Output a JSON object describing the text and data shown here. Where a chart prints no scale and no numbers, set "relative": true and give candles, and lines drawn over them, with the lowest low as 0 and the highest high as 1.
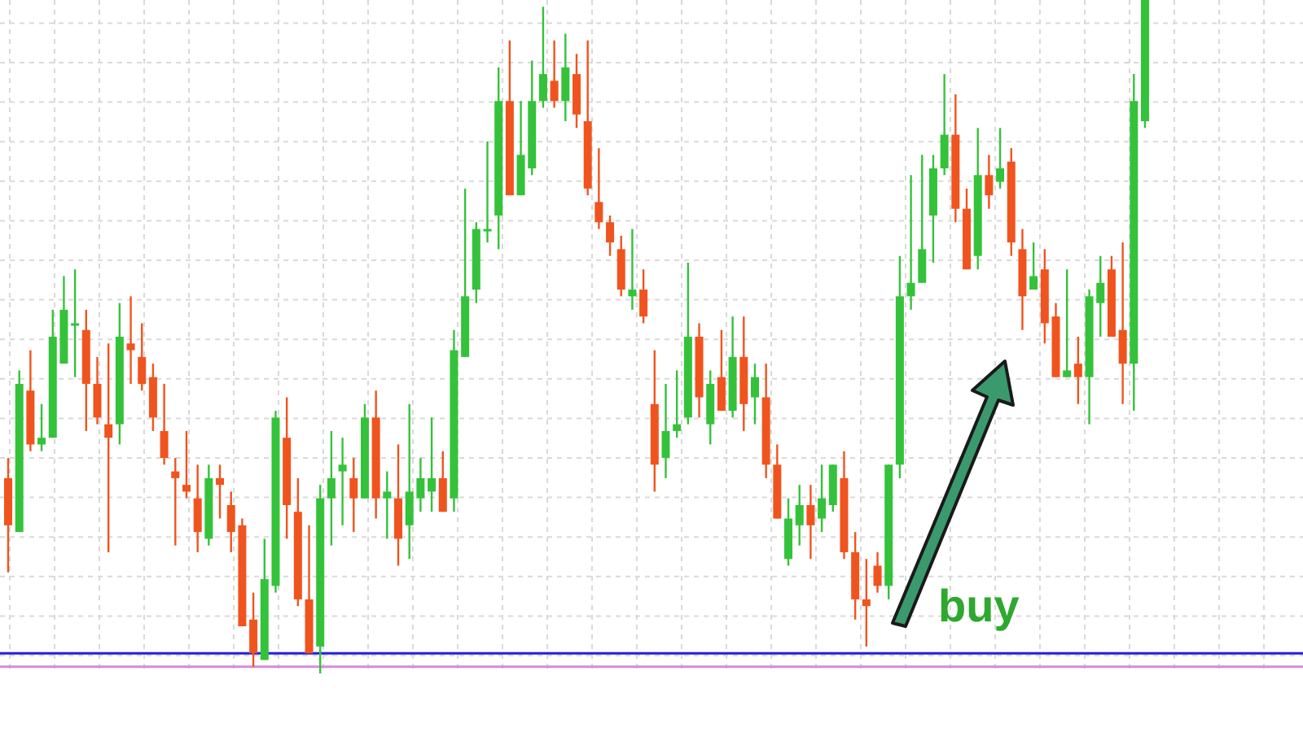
{
  "chart_data": {
    "type": "candlestick",
    "relative": true,
    "grid": true,
    "categories": [
      null,
      null,
      null,
      null,
      null,
      null,
      null,
      null,
      null,
      null,
      null,
      null,
      null,
      null,
      null,
      null,
      null,
      null,
      null,
      null,
      null,
      null,
      null,
      null,
      null,
      null,
      null,
      null,
      null,
      null,
      null,
      null,
      null,
      null,
      null,
      null,
      null,
      null,
      null,
      null,
      null,
      null,
      null,
      null,
      null,
      null,
      null,
      null,
      null,
      null,
      null,
      null,
      null,
      null,
      null,
      null,
      null,
      null,
      null,
      null,
      null,
      null,
      null,
      null,
      null,
      null,
      null,
      null,
      null,
      null,
      null,
      null,
      null,
      null,
      null,
      null,
      null,
      null,
      null,
      null,
      null,
      null,
      null,
      null,
      null,
      null,
      null,
      null,
      null,
      null,
      null,
      null,
      null,
      null,
      null,
      null,
      null,
      null,
      null,
      null,
      null,
      null,
      null
    ],
    "ohlc": [
      [
        0.29,
        0.32,
        0.15,
        0.22
      ],
      [
        0.21,
        0.45,
        0.21,
        0.43
      ],
      [
        0.42,
        0.48,
        0.33,
        0.34
      ],
      [
        0.34,
        0.4,
        0.33,
        0.35
      ],
      [
        0.35,
        0.54,
        0.35,
        0.5
      ],
      [
        0.46,
        0.59,
        0.46,
        0.54
      ],
      [
        0.52,
        0.6,
        0.44,
        0.52
      ],
      [
        0.51,
        0.54,
        0.36,
        0.43
      ],
      [
        0.43,
        0.47,
        0.37,
        0.38
      ],
      [
        0.37,
        0.49,
        0.18,
        0.35
      ],
      [
        0.37,
        0.55,
        0.34,
        0.5
      ],
      [
        0.49,
        0.56,
        0.43,
        0.48
      ],
      [
        0.47,
        0.52,
        0.42,
        0.43
      ],
      [
        0.44,
        0.46,
        0.36,
        0.38
      ],
      [
        0.36,
        0.43,
        0.31,
        0.32
      ],
      [
        0.3,
        0.32,
        0.19,
        0.29
      ],
      [
        0.28,
        0.36,
        0.26,
        0.27
      ],
      [
        0.26,
        0.31,
        0.18,
        0.21
      ],
      [
        0.2,
        0.31,
        0.19,
        0.29
      ],
      [
        0.29,
        0.31,
        0.23,
        0.28
      ],
      [
        0.25,
        0.27,
        0.18,
        0.21
      ],
      [
        0.22,
        0.23,
        0.07,
        0.07
      ],
      [
        0.08,
        0.12,
        0.01,
        0.03
      ],
      [
        0.02,
        0.2,
        0.02,
        0.14
      ],
      [
        0.13,
        0.39,
        0.12,
        0.38
      ],
      [
        0.35,
        0.41,
        0.2,
        0.25
      ],
      [
        0.24,
        0.29,
        0.1,
        0.11
      ],
      [
        0.11,
        0.22,
        0.03,
        0.03
      ],
      [
        0.04,
        0.28,
        0,
        0.26
      ],
      [
        0.26,
        0.36,
        0.19,
        0.29
      ],
      [
        0.3,
        0.35,
        0.22,
        0.31
      ],
      [
        0.29,
        0.32,
        0.21,
        0.26
      ],
      [
        0.26,
        0.4,
        0.26,
        0.38
      ],
      [
        0.38,
        0.42,
        0.23,
        0.26
      ],
      [
        0.26,
        0.3,
        0.2,
        0.27
      ],
      [
        0.26,
        0.34,
        0.16,
        0.2
      ],
      [
        0.22,
        0.4,
        0.17,
        0.27
      ],
      [
        0.26,
        0.32,
        0.24,
        0.29
      ],
      [
        0.27,
        0.38,
        0.24,
        0.29
      ],
      [
        0.29,
        0.33,
        0.24,
        0.24
      ],
      [
        0.26,
        0.51,
        0.24,
        0.48
      ],
      [
        0.47,
        0.72,
        0.47,
        0.56
      ],
      [
        0.57,
        0.67,
        0.55,
        0.66
      ],
      [
        0.66,
        0.79,
        0.64,
        0.66
      ],
      [
        0.68,
        0.9,
        0.63,
        0.85
      ],
      [
        0.85,
        0.94,
        0.71,
        0.71
      ],
      [
        0.71,
        0.85,
        0.71,
        0.77
      ],
      [
        0.75,
        0.91,
        0.74,
        0.85
      ],
      [
        0.85,
        0.99,
        0.84,
        0.89
      ],
      [
        0.88,
        0.94,
        0.84,
        0.85
      ],
      [
        0.85,
        0.95,
        0.82,
        0.9
      ],
      [
        0.89,
        0.92,
        0.81,
        0.83
      ],
      [
        0.82,
        0.94,
        0.71,
        0.72
      ],
      [
        0.7,
        0.78,
        0.66,
        0.67
      ],
      [
        0.67,
        0.68,
        0.62,
        0.64
      ],
      [
        0.63,
        0.65,
        0.56,
        0.57
      ],
      [
        0.56,
        0.66,
        0.54,
        0.57
      ],
      [
        0.57,
        0.6,
        0.52,
        0.53
      ],
      [
        0.4,
        0.48,
        0.27,
        0.31
      ],
      [
        0.32,
        0.43,
        0.29,
        0.36
      ],
      [
        0.36,
        0.45,
        0.35,
        0.37
      ],
      [
        0.38,
        0.61,
        0.37,
        0.5
      ],
      [
        0.5,
        0.52,
        0.38,
        0.41
      ],
      [
        0.37,
        0.45,
        0.34,
        0.43
      ],
      [
        0.44,
        0.51,
        0.39,
        0.39
      ],
      [
        0.39,
        0.53,
        0.38,
        0.47
      ],
      [
        0.47,
        0.53,
        0.36,
        0.4
      ],
      [
        0.41,
        0.46,
        0.37,
        0.44
      ],
      [
        0.41,
        0.46,
        0.29,
        0.31
      ],
      [
        0.31,
        0.34,
        0.23,
        0.23
      ],
      [
        0.17,
        0.26,
        0.16,
        0.23
      ],
      [
        0.22,
        0.28,
        0.19,
        0.25
      ],
      [
        0.25,
        0.28,
        0.17,
        0.22
      ],
      [
        0.23,
        0.31,
        0.21,
        0.26
      ],
      [
        0.25,
        0.31,
        0.24,
        0.31
      ],
      [
        0.29,
        0.33,
        0.17,
        0.18
      ],
      [
        0.18,
        0.21,
        0.08,
        0.11
      ],
      [
        0.11,
        0.17,
        0.04,
        0.1
      ],
      [
        0.16,
        0.18,
        0.12,
        0.13
      ],
      [
        0.13,
        0.31,
        0.11,
        0.31
      ],
      [
        0.31,
        0.62,
        0.29,
        0.56
      ],
      [
        0.56,
        0.74,
        0.54,
        0.58
      ],
      [
        0.58,
        0.77,
        0.58,
        0.63
      ],
      [
        0.68,
        0.77,
        0.61,
        0.75
      ],
      [
        0.75,
        0.89,
        0.74,
        0.8
      ],
      [
        0.8,
        0.86,
        0.67,
        0.69
      ],
      [
        0.69,
        0.72,
        0.6,
        0.6
      ],
      [
        0.62,
        0.81,
        0.6,
        0.74
      ],
      [
        0.74,
        0.77,
        0.69,
        0.71
      ],
      [
        0.73,
        0.81,
        0.72,
        0.75
      ],
      [
        0.76,
        0.78,
        0.62,
        0.64
      ],
      [
        0.63,
        0.66,
        0.51,
        0.56
      ],
      [
        0.57,
        0.64,
        0.57,
        0.59
      ],
      [
        0.6,
        0.63,
        0.49,
        0.52
      ],
      [
        0.53,
        0.55,
        0.44,
        0.44
      ],
      [
        0.44,
        0.6,
        0.44,
        0.45
      ],
      [
        0.46,
        0.5,
        0.4,
        0.44
      ],
      [
        0.44,
        0.57,
        0.37,
        0.56
      ],
      [
        0.55,
        0.62,
        0.5,
        0.58
      ],
      [
        0.6,
        0.62,
        0.5,
        0.5
      ],
      [
        0.51,
        0.64,
        0.4,
        0.46
      ],
      [
        0.46,
        0.89,
        0.39,
        0.85
      ],
      [
        0.82,
        1,
        0.81,
        1
      ]
    ],
    "ref_lines": [
      {
        "axis": "y",
        "value": 0.03,
        "color": "#1f1fe0"
      },
      {
        "axis": "y",
        "value": 0.01,
        "color": "#d98ad9"
      }
    ],
    "annotations": [
      "buy"
    ]
  }
}
